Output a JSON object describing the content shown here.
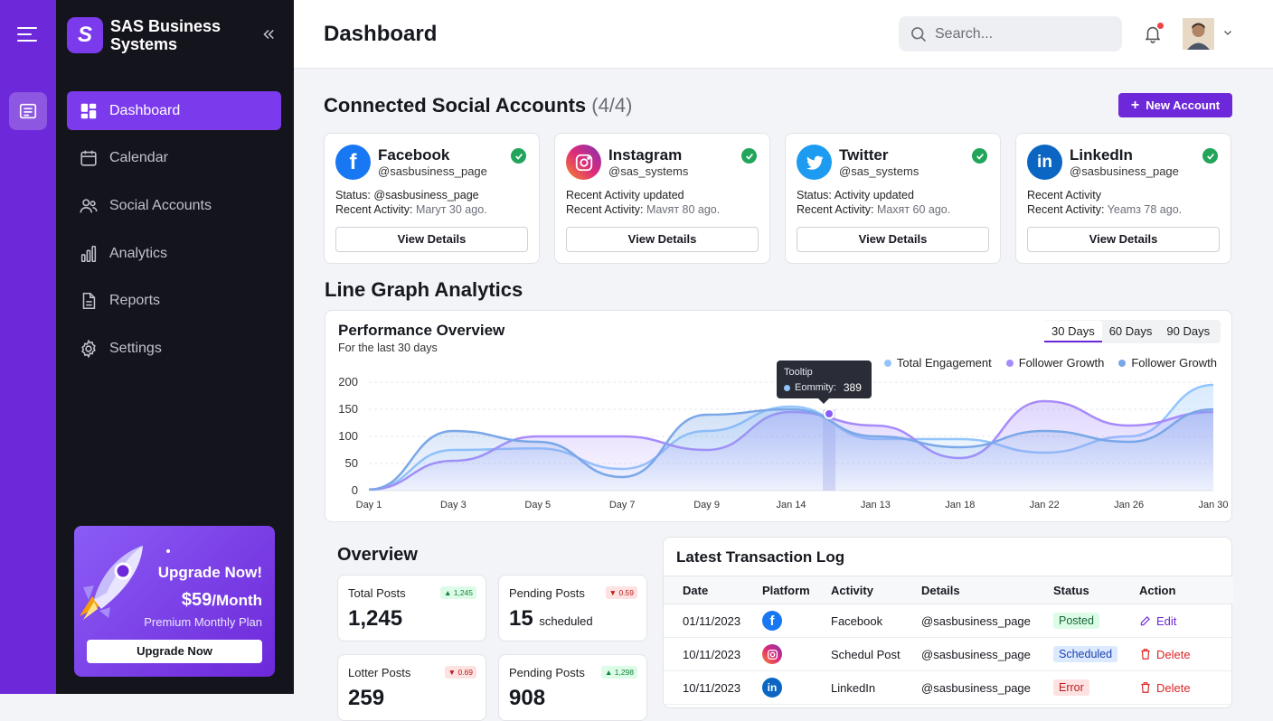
{
  "brand": {
    "name": "SAS Business Systems",
    "logo_letter": "S"
  },
  "nav": [
    {
      "label": "Dashboard",
      "icon": "dashboard-icon",
      "active": true
    },
    {
      "label": "Calendar",
      "icon": "calendar-icon"
    },
    {
      "label": "Social Accounts",
      "icon": "users-icon"
    },
    {
      "label": "Analytics",
      "icon": "bar-chart-icon"
    },
    {
      "label": "Reports",
      "icon": "document-icon"
    },
    {
      "label": "Settings",
      "icon": "gear-icon"
    }
  ],
  "upgrade": {
    "title": "Upgrade Now!",
    "price": "$59",
    "per": "/Month",
    "plan": "Premium Monthly Plan",
    "button": "Upgrade Now"
  },
  "header": {
    "title": "Dashboard",
    "search_placeholder": "Search..."
  },
  "accounts_section": {
    "title": "Connected Social Accounts",
    "count": "(4/4)",
    "new_button": "New Account"
  },
  "accounts": [
    {
      "name": "Facebook",
      "handle": "@sasbusiness_page",
      "line1": "Status: @sasbusiness_page",
      "line2_label": "Recent Activity:",
      "line2_value": "Maryт 30 ago.",
      "button": "View Details",
      "color": "#1877f2",
      "icon": "facebook-icon"
    },
    {
      "name": "Instagram",
      "handle": "@sas_systems",
      "line1": "Recent Activity updated",
      "line2_label": "Recent Activity:",
      "line2_value": "Mavят 80 ago.",
      "button": "View Details",
      "color": "#dd2a7b",
      "icon": "instagram-icon"
    },
    {
      "name": "Twitter",
      "handle": "@sas_systems",
      "line1": "Status: Activity updated",
      "line2_label": "Recent Activity:",
      "line2_value": "Maxят 60 ago.",
      "button": "View Details",
      "color": "#1d9bf0",
      "icon": "twitter-icon"
    },
    {
      "name": "LinkedIn",
      "handle": "@sasbusiness_page",
      "line1": "Recent Activity",
      "line2_label": "Recent Activity:",
      "line2_value": "Yeamз 78 ago.",
      "button": "View Details",
      "color": "#0a66c2",
      "icon": "linkedin-icon"
    }
  ],
  "analytics_section": {
    "title": "Line Graph Analytics"
  },
  "chart_card": {
    "title": "Performance Overview",
    "subtitle": "For the last 30 days",
    "ranges": [
      "30 Days",
      "60 Days",
      "90 Days"
    ],
    "active_range": "30 Days",
    "tooltip": {
      "label": "Tooltip",
      "series": "Eommity:",
      "value": "389"
    }
  },
  "chart_data": {
    "type": "area",
    "categories": [
      "Day 1",
      "Day 3",
      "Day 5",
      "Day 7",
      "Day 9",
      "Jan 14",
      "Jan 13",
      "Jan 18",
      "Jan 22",
      "Jan 26",
      "Jan 30"
    ],
    "ylim": [
      0,
      200
    ],
    "yticks": [
      0,
      50,
      100,
      150,
      200
    ],
    "legend_position": "top-right",
    "series": [
      {
        "name": "Total Engagement",
        "color": "#93c5fd",
        "values": [
          2,
          75,
          78,
          40,
          110,
          155,
          95,
          95,
          70,
          100,
          195
        ]
      },
      {
        "name": "Follower Growth",
        "color": "#a78bfa",
        "values": [
          2,
          55,
          100,
          100,
          75,
          145,
          120,
          60,
          165,
          120,
          145
        ]
      },
      {
        "name": "Follower Growth",
        "color": "#7aa7e8",
        "values": [
          2,
          110,
          90,
          25,
          140,
          150,
          100,
          80,
          110,
          90,
          150
        ]
      }
    ]
  },
  "overview": {
    "title": "Overview",
    "stats": [
      {
        "label": "Total Posts",
        "value": "1,245",
        "unit": "",
        "badge": "▲ 1,245",
        "trend": "up"
      },
      {
        "label": "Pending Posts",
        "value": "15",
        "unit": "scheduled",
        "badge": "▼ 0.59",
        "trend": "down"
      },
      {
        "label": "Lotter Posts",
        "value": "259",
        "unit": "",
        "badge": "▼ 0.69",
        "trend": "down"
      },
      {
        "label": "Pending Posts",
        "value": "908",
        "unit": "",
        "badge": "▲ 1,298",
        "trend": "up"
      }
    ]
  },
  "transactions": {
    "title": "Latest Transaction Log",
    "columns": [
      "Date",
      "Platform",
      "Activity",
      "Details",
      "Status",
      "Action"
    ],
    "rows": [
      {
        "date": "01/11/2023",
        "platform": "facebook-icon",
        "activity": "Facebook",
        "details": "@sasbusiness_page",
        "status": "Posted",
        "status_kind": "posted",
        "action": "Edit"
      },
      {
        "date": "10/11/2023",
        "platform": "instagram-icon",
        "activity": "Schedul Post",
        "details": "@sasbusiness_page",
        "status": "Scheduled",
        "status_kind": "scheduled",
        "action": "Delete"
      },
      {
        "date": "10/11/2023",
        "platform": "linkedin-icon",
        "activity": "LinkedIn",
        "details": "@sasbusiness_page",
        "status": "Error",
        "status_kind": "error",
        "action": "Delete"
      }
    ]
  }
}
